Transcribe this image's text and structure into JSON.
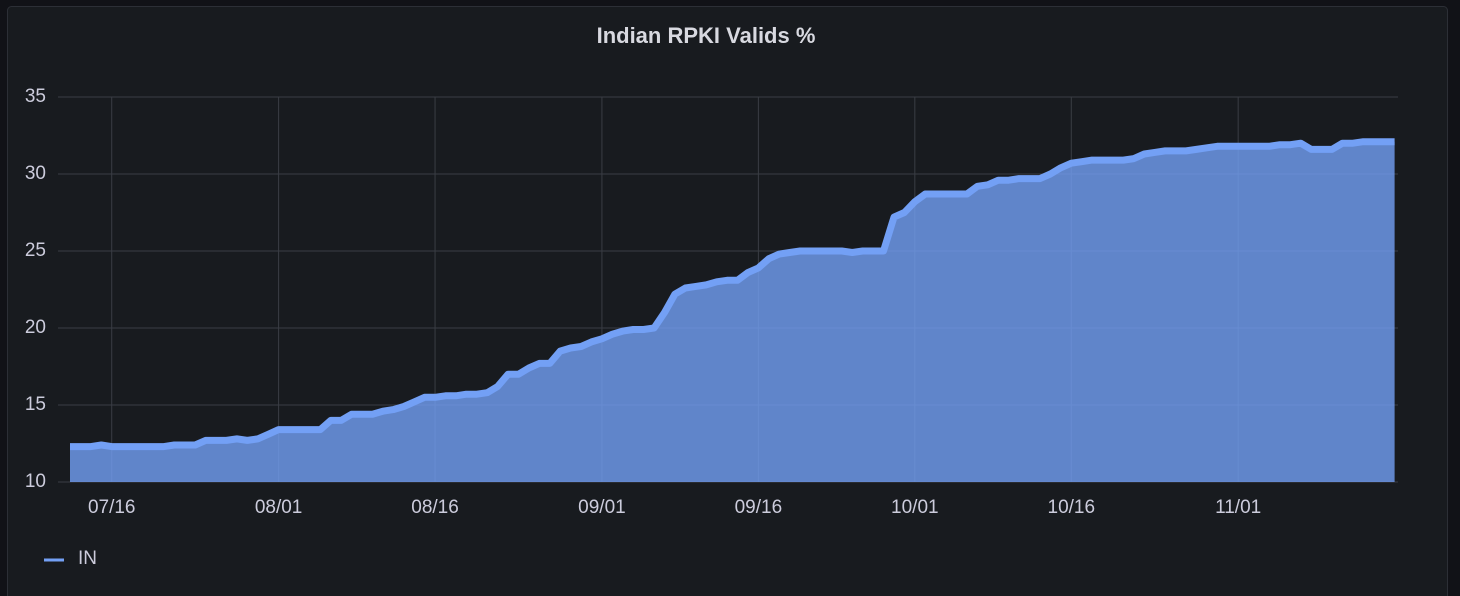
{
  "chart_data": {
    "type": "area",
    "title": "Indian RPKI Valids %",
    "x": [
      "07/12",
      "07/13",
      "07/14",
      "07/15",
      "07/16",
      "07/17",
      "07/18",
      "07/19",
      "07/20",
      "07/21",
      "07/22",
      "07/23",
      "07/24",
      "07/25",
      "07/26",
      "07/27",
      "07/28",
      "07/29",
      "07/30",
      "07/31",
      "08/01",
      "08/02",
      "08/03",
      "08/04",
      "08/05",
      "08/06",
      "08/07",
      "08/08",
      "08/09",
      "08/10",
      "08/11",
      "08/12",
      "08/13",
      "08/14",
      "08/15",
      "08/16",
      "08/17",
      "08/18",
      "08/19",
      "08/20",
      "08/21",
      "08/22",
      "08/23",
      "08/24",
      "08/25",
      "08/26",
      "08/27",
      "08/28",
      "08/29",
      "08/30",
      "08/31",
      "09/01",
      "09/02",
      "09/03",
      "09/04",
      "09/05",
      "09/06",
      "09/07",
      "09/08",
      "09/09",
      "09/10",
      "09/11",
      "09/12",
      "09/13",
      "09/14",
      "09/15",
      "09/16",
      "09/17",
      "09/18",
      "09/19",
      "09/20",
      "09/21",
      "09/22",
      "09/23",
      "09/24",
      "09/25",
      "09/26",
      "09/27",
      "09/28",
      "09/29",
      "09/30",
      "10/01",
      "10/02",
      "10/03",
      "10/04",
      "10/05",
      "10/06",
      "10/07",
      "10/08",
      "10/09",
      "10/10",
      "10/11",
      "10/12",
      "10/13",
      "10/14",
      "10/15",
      "10/16",
      "10/17",
      "10/18",
      "10/19",
      "10/20",
      "10/21",
      "10/22",
      "10/23",
      "10/24",
      "10/25",
      "10/26",
      "10/27",
      "10/28",
      "10/29",
      "10/30",
      "10/31",
      "11/01",
      "11/02",
      "11/03",
      "11/04",
      "11/05",
      "11/06",
      "11/07",
      "11/08",
      "11/09",
      "11/10",
      "11/11",
      "11/12",
      "11/13",
      "11/14",
      "11/15",
      "11/16"
    ],
    "series": [
      {
        "name": "IN",
        "color": "#73a0f5",
        "values": [
          12.3,
          12.3,
          12.3,
          12.4,
          12.3,
          12.3,
          12.3,
          12.3,
          12.3,
          12.3,
          12.4,
          12.4,
          12.4,
          12.7,
          12.7,
          12.7,
          12.8,
          12.7,
          12.8,
          13.1,
          13.4,
          13.4,
          13.4,
          13.4,
          13.4,
          14.0,
          14.0,
          14.4,
          14.4,
          14.4,
          14.6,
          14.7,
          14.9,
          15.2,
          15.5,
          15.5,
          15.6,
          15.6,
          15.7,
          15.7,
          15.8,
          16.2,
          17.0,
          17.0,
          17.4,
          17.7,
          17.7,
          18.5,
          18.7,
          18.8,
          19.1,
          19.3,
          19.6,
          19.8,
          19.9,
          19.9,
          20.0,
          21.0,
          22.2,
          22.6,
          22.7,
          22.8,
          23.0,
          23.1,
          23.1,
          23.6,
          23.9,
          24.5,
          24.8,
          24.9,
          25.0,
          25.0,
          25.0,
          25.0,
          25.0,
          24.9,
          25.0,
          25.0,
          25.0,
          27.2,
          27.5,
          28.2,
          28.7,
          28.7,
          28.7,
          28.7,
          28.7,
          29.2,
          29.3,
          29.6,
          29.6,
          29.7,
          29.7,
          29.7,
          30.0,
          30.4,
          30.7,
          30.8,
          30.9,
          30.9,
          30.9,
          30.9,
          31.0,
          31.3,
          31.4,
          31.5,
          31.5,
          31.5,
          31.6,
          31.7,
          31.8,
          31.8,
          31.8,
          31.8,
          31.8,
          31.8,
          31.9,
          31.9,
          32.0,
          31.6,
          31.6,
          31.6,
          32.0,
          32.0,
          32.1,
          32.1,
          32.1,
          32.1
        ]
      }
    ],
    "ylim": [
      10,
      35
    ],
    "yticks": [
      10,
      15,
      20,
      25,
      30,
      35
    ],
    "xticks": [
      "07/16",
      "08/01",
      "08/16",
      "09/01",
      "09/16",
      "10/01",
      "10/16",
      "11/01"
    ],
    "grid": true
  }
}
